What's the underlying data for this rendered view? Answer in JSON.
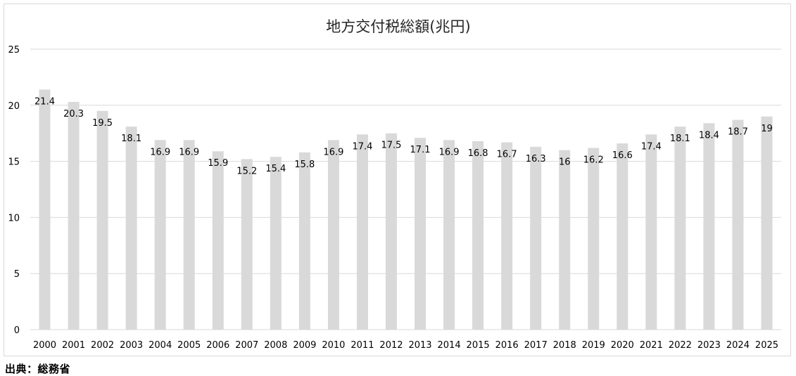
{
  "source_note": "出典：総務省",
  "colors": {
    "bar": "#d9d9d9",
    "grid": "#d9d9d9",
    "text": "#000000",
    "title": "#262626"
  },
  "chart_data": {
    "type": "bar",
    "title": "地方交付税総額(兆円)",
    "xlabel": "",
    "ylabel": "",
    "ylim": [
      0,
      25
    ],
    "yticks": [
      0,
      5,
      10,
      15,
      20,
      25
    ],
    "grid": true,
    "legend": "none",
    "categories": [
      "2000",
      "2001",
      "2002",
      "2003",
      "2004",
      "2005",
      "2006",
      "2007",
      "2008",
      "2009",
      "2010",
      "2011",
      "2012",
      "2013",
      "2014",
      "2015",
      "2016",
      "2017",
      "2018",
      "2019",
      "2020",
      "2021",
      "2022",
      "2023",
      "2024",
      "2025"
    ],
    "values": [
      21.4,
      20.3,
      19.5,
      18.1,
      16.9,
      16.9,
      15.9,
      15.2,
      15.4,
      15.8,
      16.9,
      17.4,
      17.5,
      17.1,
      16.9,
      16.8,
      16.7,
      16.3,
      16,
      16.2,
      16.6,
      17.4,
      18.1,
      18.4,
      18.7,
      19
    ],
    "value_labels": [
      "21.4",
      "20.3",
      "19.5",
      "18.1",
      "16.9",
      "16.9",
      "15.9",
      "15.2",
      "15.4",
      "15.8",
      "16.9",
      "17.4",
      "17.5",
      "17.1",
      "16.9",
      "16.8",
      "16.7",
      "16.3",
      "16",
      "16.2",
      "16.6",
      "17.4",
      "18.1",
      "18.4",
      "18.7",
      "19"
    ]
  }
}
